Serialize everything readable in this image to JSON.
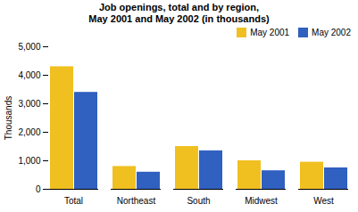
{
  "chart_data": {
    "type": "bar",
    "title": "Job openings, total and by region,",
    "subtitle": "May 2001 and May 2002  (in thousands)",
    "categories": [
      "Total",
      "Northeast",
      "South",
      "Midwest",
      "West"
    ],
    "series": [
      {
        "name": "May 2001",
        "color": "#F0C020",
        "values": [
          4300,
          800,
          1500,
          1000,
          950
        ]
      },
      {
        "name": "May 2002",
        "color": "#3060C0",
        "values": [
          3400,
          600,
          1350,
          650,
          750
        ]
      }
    ],
    "ylabel": "Thousands",
    "ylim": [
      0,
      5000
    ],
    "yticks": [
      0,
      {
        "value": 1000,
        "label": "1,000"
      },
      {
        "value": 2000,
        "label": "2,000"
      },
      {
        "value": 3000,
        "label": "3,000"
      },
      {
        "value": 4000,
        "label": "4,000"
      },
      {
        "value": 5000,
        "label": "5,000"
      }
    ],
    "grid": false,
    "legend": "upper right"
  }
}
